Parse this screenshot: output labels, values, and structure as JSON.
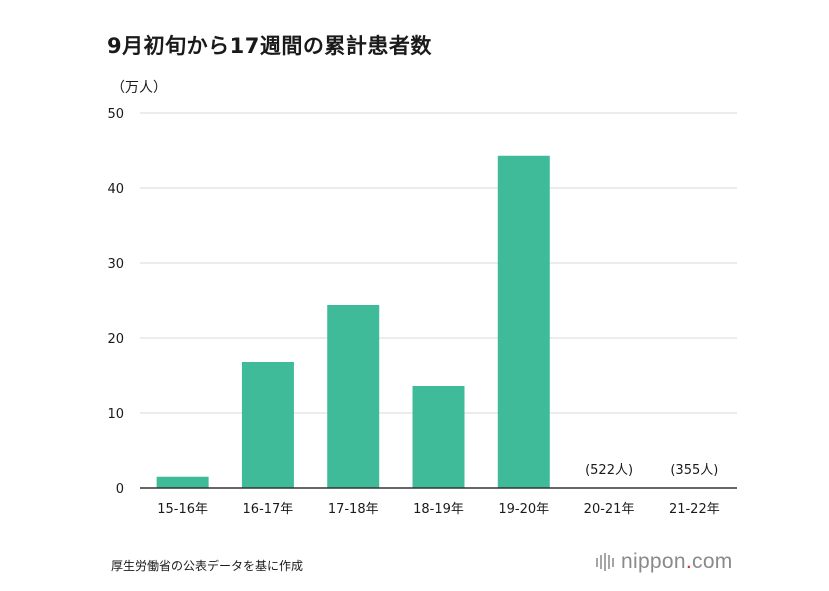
{
  "title": "9月初旬から17週間の累計患者数",
  "source": "厚生労働省の公表データを基に作成",
  "brand": {
    "name": "nippon",
    "dot": ".",
    "tld": "com",
    "accent": "#d8232a"
  },
  "chart_data": {
    "type": "bar",
    "title": "9月初旬から17週間の累計患者数",
    "ylabel": "（万人）",
    "xlabel": "",
    "categories": [
      "15-16年",
      "16-17年",
      "17-18年",
      "18-19年",
      "19-20年",
      "20-21年",
      "21-22年"
    ],
    "values": [
      1.5,
      16.8,
      24.4,
      13.6,
      44.3,
      0.0522,
      0.0355
    ],
    "annotations": [
      "",
      "",
      "",
      "",
      "",
      "(522人)",
      "(355人)"
    ],
    "ylim": [
      0,
      50
    ],
    "yticks": [
      0,
      10,
      20,
      30,
      40,
      50
    ],
    "grid": true,
    "bar_color": "#40bb9a"
  }
}
